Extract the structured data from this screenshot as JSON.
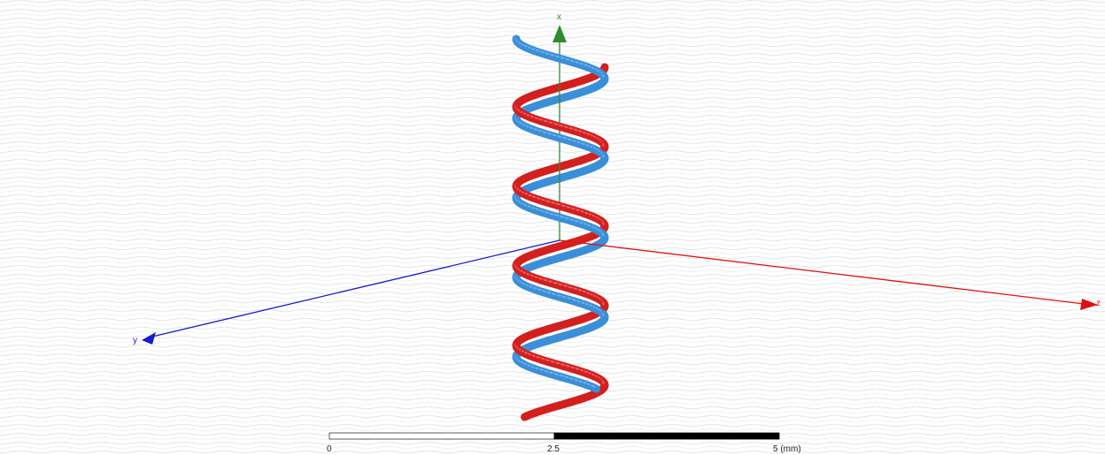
{
  "viewport": {
    "background": "#ffffff",
    "grid_color": "#d9d9d9"
  },
  "axes": {
    "x": {
      "label": "x",
      "color": "#2e8b2e"
    },
    "y": {
      "label": "y",
      "color": "#1a1ad0"
    },
    "z": {
      "label": "z",
      "color": "#e01010"
    }
  },
  "model": {
    "helix_a": {
      "color": "#3a8fd8",
      "highlight": "#9ccaf2"
    },
    "helix_b": {
      "color": "#d41f1f",
      "highlight": "#f09a9a"
    }
  },
  "ruler": {
    "ticks": [
      "0",
      "2.5",
      "5 (mm)"
    ],
    "colors": [
      "#ffffff",
      "#000000"
    ]
  }
}
